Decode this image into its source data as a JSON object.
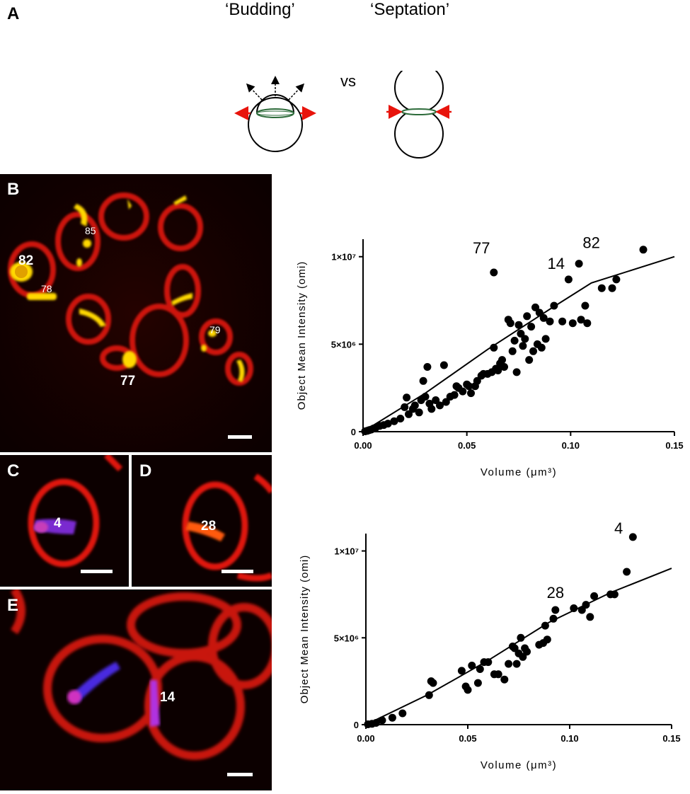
{
  "panel_a": {
    "letter": "A",
    "budding_label": "‘Budding’",
    "septation_label": "‘Septation’",
    "vs_label": "vs"
  },
  "panel_b": {
    "letter": "B",
    "labels": [
      "82",
      "85",
      "78",
      "79",
      "77"
    ]
  },
  "panel_c": {
    "letter": "C",
    "label": "4"
  },
  "panel_d": {
    "letter": "D",
    "label": "28"
  },
  "panel_e": {
    "letter": "E",
    "label": "14"
  },
  "colors": {
    "membrane": "#e0130f",
    "yellow_ring": "#ffd800",
    "magenta_ring": "#b83cd8",
    "orange_ring": "#ff5a10",
    "red_arrow": "#e8140c",
    "ring_green": "#2d6b3a"
  },
  "chart_data": [
    {
      "type": "scatter",
      "xlabel": "Volume (μm³)",
      "ylabel": "Object Mean Intensity (omi)",
      "xlim": [
        0,
        0.15
      ],
      "ylim": [
        0,
        11000000
      ],
      "x_ticks": [
        "0.00",
        "0.05",
        "0.10",
        "0.15"
      ],
      "y_ticks": [
        "0",
        "5×10⁶",
        "1×10⁷"
      ],
      "fit_line": [
        [
          0.0,
          0
        ],
        [
          0.03,
          2200000
        ],
        [
          0.06,
          4700000
        ],
        [
          0.09,
          7000000
        ],
        [
          0.11,
          8500000
        ],
        [
          0.15,
          10000000
        ]
      ],
      "annotations": [
        {
          "text": "77",
          "x": 0.057,
          "y": 10200000
        },
        {
          "text": "82",
          "x": 0.11,
          "y": 10500000
        },
        {
          "text": "14",
          "x": 0.093,
          "y": 9300000
        }
      ],
      "points": [
        [
          0.001,
          20000
        ],
        [
          0.002,
          50000
        ],
        [
          0.003,
          90000
        ],
        [
          0.004,
          120000
        ],
        [
          0.005,
          180000
        ],
        [
          0.006,
          210000
        ],
        [
          0.008,
          330000
        ],
        [
          0.01,
          380000
        ],
        [
          0.012,
          460000
        ],
        [
          0.015,
          600000
        ],
        [
          0.018,
          750000
        ],
        [
          0.02,
          1400000
        ],
        [
          0.021,
          1950000
        ],
        [
          0.022,
          1000000
        ],
        [
          0.024,
          1300000
        ],
        [
          0.025,
          1500000
        ],
        [
          0.027,
          1100000
        ],
        [
          0.028,
          1800000
        ],
        [
          0.029,
          2900000
        ],
        [
          0.03,
          2000000
        ],
        [
          0.031,
          3700000
        ],
        [
          0.032,
          1600000
        ],
        [
          0.033,
          1300000
        ],
        [
          0.035,
          1800000
        ],
        [
          0.037,
          1500000
        ],
        [
          0.039,
          3800000
        ],
        [
          0.04,
          1700000
        ],
        [
          0.042,
          2000000
        ],
        [
          0.044,
          2100000
        ],
        [
          0.045,
          2600000
        ],
        [
          0.046,
          2500000
        ],
        [
          0.048,
          2300000
        ],
        [
          0.05,
          2700000
        ],
        [
          0.051,
          2600000
        ],
        [
          0.052,
          2200000
        ],
        [
          0.054,
          2600000
        ],
        [
          0.055,
          2900000
        ],
        [
          0.057,
          3200000
        ],
        [
          0.058,
          3300000
        ],
        [
          0.06,
          3300000
        ],
        [
          0.062,
          3400000
        ],
        [
          0.063,
          4800000
        ],
        [
          0.063,
          9100000
        ],
        [
          0.064,
          3600000
        ],
        [
          0.065,
          3500000
        ],
        [
          0.066,
          3900000
        ],
        [
          0.067,
          4100000
        ],
        [
          0.068,
          3700000
        ],
        [
          0.07,
          6400000
        ],
        [
          0.071,
          6200000
        ],
        [
          0.072,
          4600000
        ],
        [
          0.073,
          5200000
        ],
        [
          0.074,
          3400000
        ],
        [
          0.075,
          6100000
        ],
        [
          0.076,
          5600000
        ],
        [
          0.077,
          4900000
        ],
        [
          0.078,
          5300000
        ],
        [
          0.079,
          6600000
        ],
        [
          0.08,
          4100000
        ],
        [
          0.081,
          6000000
        ],
        [
          0.082,
          4600000
        ],
        [
          0.083,
          7100000
        ],
        [
          0.084,
          5000000
        ],
        [
          0.085,
          6800000
        ],
        [
          0.086,
          4800000
        ],
        [
          0.087,
          6500000
        ],
        [
          0.088,
          5300000
        ],
        [
          0.09,
          6300000
        ],
        [
          0.092,
          7200000
        ],
        [
          0.096,
          6300000
        ],
        [
          0.099,
          8700000
        ],
        [
          0.101,
          6200000
        ],
        [
          0.104,
          9600000
        ],
        [
          0.105,
          6400000
        ],
        [
          0.107,
          7200000
        ],
        [
          0.108,
          6200000
        ],
        [
          0.115,
          8200000
        ],
        [
          0.12,
          8200000
        ],
        [
          0.122,
          8700000
        ],
        [
          0.135,
          10400000
        ]
      ]
    },
    {
      "type": "scatter",
      "xlabel": "Volume (μm³)",
      "ylabel": "Object Mean Intensity (omi)",
      "xlim": [
        0,
        0.15
      ],
      "ylim": [
        0,
        11000000
      ],
      "x_ticks": [
        "0.00",
        "0.05",
        "0.10",
        "0.15"
      ],
      "y_ticks": [
        "0",
        "5×10⁶",
        "1×10⁷"
      ],
      "fit_line": [
        [
          0.0,
          0
        ],
        [
          0.03,
          1700000
        ],
        [
          0.06,
          3700000
        ],
        [
          0.09,
          5900000
        ],
        [
          0.12,
          7600000
        ],
        [
          0.15,
          9000000
        ]
      ],
      "annotations": [
        {
          "text": "4",
          "x": 0.124,
          "y": 11000000
        },
        {
          "text": "28",
          "x": 0.093,
          "y": 7300000
        }
      ],
      "points": [
        [
          0.001,
          20000
        ],
        [
          0.003,
          50000
        ],
        [
          0.005,
          100000
        ],
        [
          0.008,
          250000
        ],
        [
          0.013,
          400000
        ],
        [
          0.018,
          650000
        ],
        [
          0.031,
          1700000
        ],
        [
          0.032,
          2500000
        ],
        [
          0.033,
          2400000
        ],
        [
          0.047,
          3100000
        ],
        [
          0.049,
          2200000
        ],
        [
          0.05,
          2000000
        ],
        [
          0.052,
          3400000
        ],
        [
          0.055,
          2400000
        ],
        [
          0.056,
          3200000
        ],
        [
          0.058,
          3600000
        ],
        [
          0.06,
          3600000
        ],
        [
          0.063,
          2900000
        ],
        [
          0.065,
          2900000
        ],
        [
          0.068,
          2600000
        ],
        [
          0.07,
          3500000
        ],
        [
          0.072,
          4500000
        ],
        [
          0.073,
          4400000
        ],
        [
          0.074,
          3500000
        ],
        [
          0.075,
          4100000
        ],
        [
          0.076,
          5000000
        ],
        [
          0.077,
          3900000
        ],
        [
          0.078,
          4400000
        ],
        [
          0.079,
          4200000
        ],
        [
          0.085,
          4600000
        ],
        [
          0.087,
          4700000
        ],
        [
          0.088,
          5700000
        ],
        [
          0.089,
          4900000
        ],
        [
          0.092,
          6100000
        ],
        [
          0.093,
          6600000
        ],
        [
          0.102,
          6700000
        ],
        [
          0.106,
          6600000
        ],
        [
          0.108,
          6900000
        ],
        [
          0.11,
          6200000
        ],
        [
          0.112,
          7400000
        ],
        [
          0.12,
          7500000
        ],
        [
          0.122,
          7500000
        ],
        [
          0.128,
          8800000
        ],
        [
          0.131,
          10800000
        ]
      ]
    }
  ]
}
